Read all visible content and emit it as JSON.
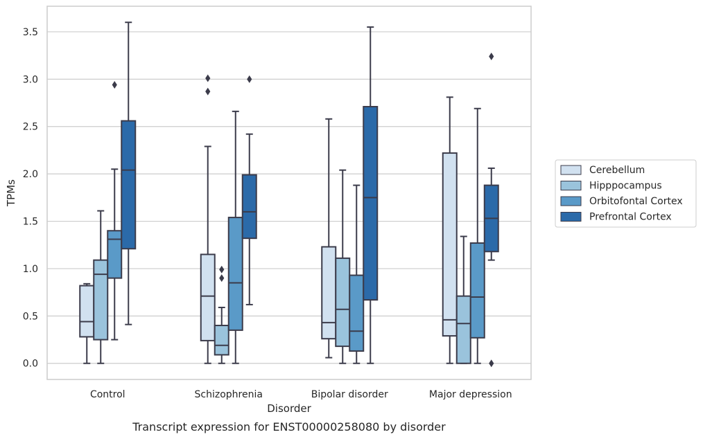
{
  "chart_data": {
    "type": "box",
    "title": "",
    "caption": "Transcript expression for ENST00000258080 by disorder",
    "xlabel": "Disorder",
    "ylabel": "TPMs",
    "ylim": [
      -0.17,
      3.77
    ],
    "yticks": [
      "0.0",
      "0.5",
      "1.0",
      "1.5",
      "2.0",
      "2.5",
      "3.0",
      "3.5"
    ],
    "grid": "horizontal",
    "legend_position": "right",
    "categories": [
      "Control",
      "Schizophrenia",
      "Bipolar disorder",
      "Major depression"
    ],
    "series": [
      {
        "name": "Cerebellum",
        "color": "#d1e1f0",
        "boxes": [
          {
            "whislo": 0.0,
            "q1": 0.28,
            "med": 0.44,
            "q3": 0.82,
            "whishi": 0.84,
            "fliers": []
          },
          {
            "whislo": 0.0,
            "q1": 0.24,
            "med": 0.71,
            "q3": 1.15,
            "whishi": 2.29,
            "fliers": [
              2.87,
              3.01
            ]
          },
          {
            "whislo": 0.06,
            "q1": 0.26,
            "med": 0.43,
            "q3": 1.23,
            "whishi": 2.58,
            "fliers": []
          },
          {
            "whislo": 0.0,
            "q1": 0.29,
            "med": 0.46,
            "q3": 2.22,
            "whishi": 2.81,
            "fliers": []
          }
        ]
      },
      {
        "name": "Hipppocampus",
        "color": "#9ac3dc",
        "boxes": [
          {
            "whislo": 0.0,
            "q1": 0.25,
            "med": 0.94,
            "q3": 1.09,
            "whishi": 1.61,
            "fliers": []
          },
          {
            "whislo": 0.0,
            "q1": 0.09,
            "med": 0.19,
            "q3": 0.4,
            "whishi": 0.59,
            "fliers": [
              0.9,
              0.99
            ]
          },
          {
            "whislo": 0.0,
            "q1": 0.18,
            "med": 0.57,
            "q3": 1.11,
            "whishi": 2.04,
            "fliers": []
          },
          {
            "whislo": 0.0,
            "q1": 0.0,
            "med": 0.42,
            "q3": 0.71,
            "whishi": 1.34,
            "fliers": []
          }
        ]
      },
      {
        "name": "Orbitofontal Cortex",
        "color": "#5a9ac8",
        "boxes": [
          {
            "whislo": 0.25,
            "q1": 0.9,
            "med": 1.31,
            "q3": 1.4,
            "whishi": 2.05,
            "fliers": [
              2.94
            ]
          },
          {
            "whislo": 0.0,
            "q1": 0.35,
            "med": 0.85,
            "q3": 1.54,
            "whishi": 2.66,
            "fliers": []
          },
          {
            "whislo": 0.0,
            "q1": 0.13,
            "med": 0.34,
            "q3": 0.93,
            "whishi": 1.88,
            "fliers": []
          },
          {
            "whislo": 0.0,
            "q1": 0.27,
            "med": 0.7,
            "q3": 1.27,
            "whishi": 2.69,
            "fliers": []
          }
        ]
      },
      {
        "name": "Prefrontal Cortex",
        "color": "#2b6aa9",
        "boxes": [
          {
            "whislo": 0.41,
            "q1": 1.21,
            "med": 2.04,
            "q3": 2.56,
            "whishi": 3.6,
            "fliers": []
          },
          {
            "whislo": 0.62,
            "q1": 1.32,
            "med": 1.6,
            "q3": 1.99,
            "whishi": 2.42,
            "fliers": [
              3.0
            ]
          },
          {
            "whislo": 0.0,
            "q1": 0.67,
            "med": 1.75,
            "q3": 2.71,
            "whishi": 3.55,
            "fliers": []
          },
          {
            "whislo": 1.09,
            "q1": 1.18,
            "med": 1.53,
            "q3": 1.88,
            "whishi": 2.06,
            "fliers": [
              0.0,
              3.24
            ]
          }
        ]
      }
    ]
  }
}
